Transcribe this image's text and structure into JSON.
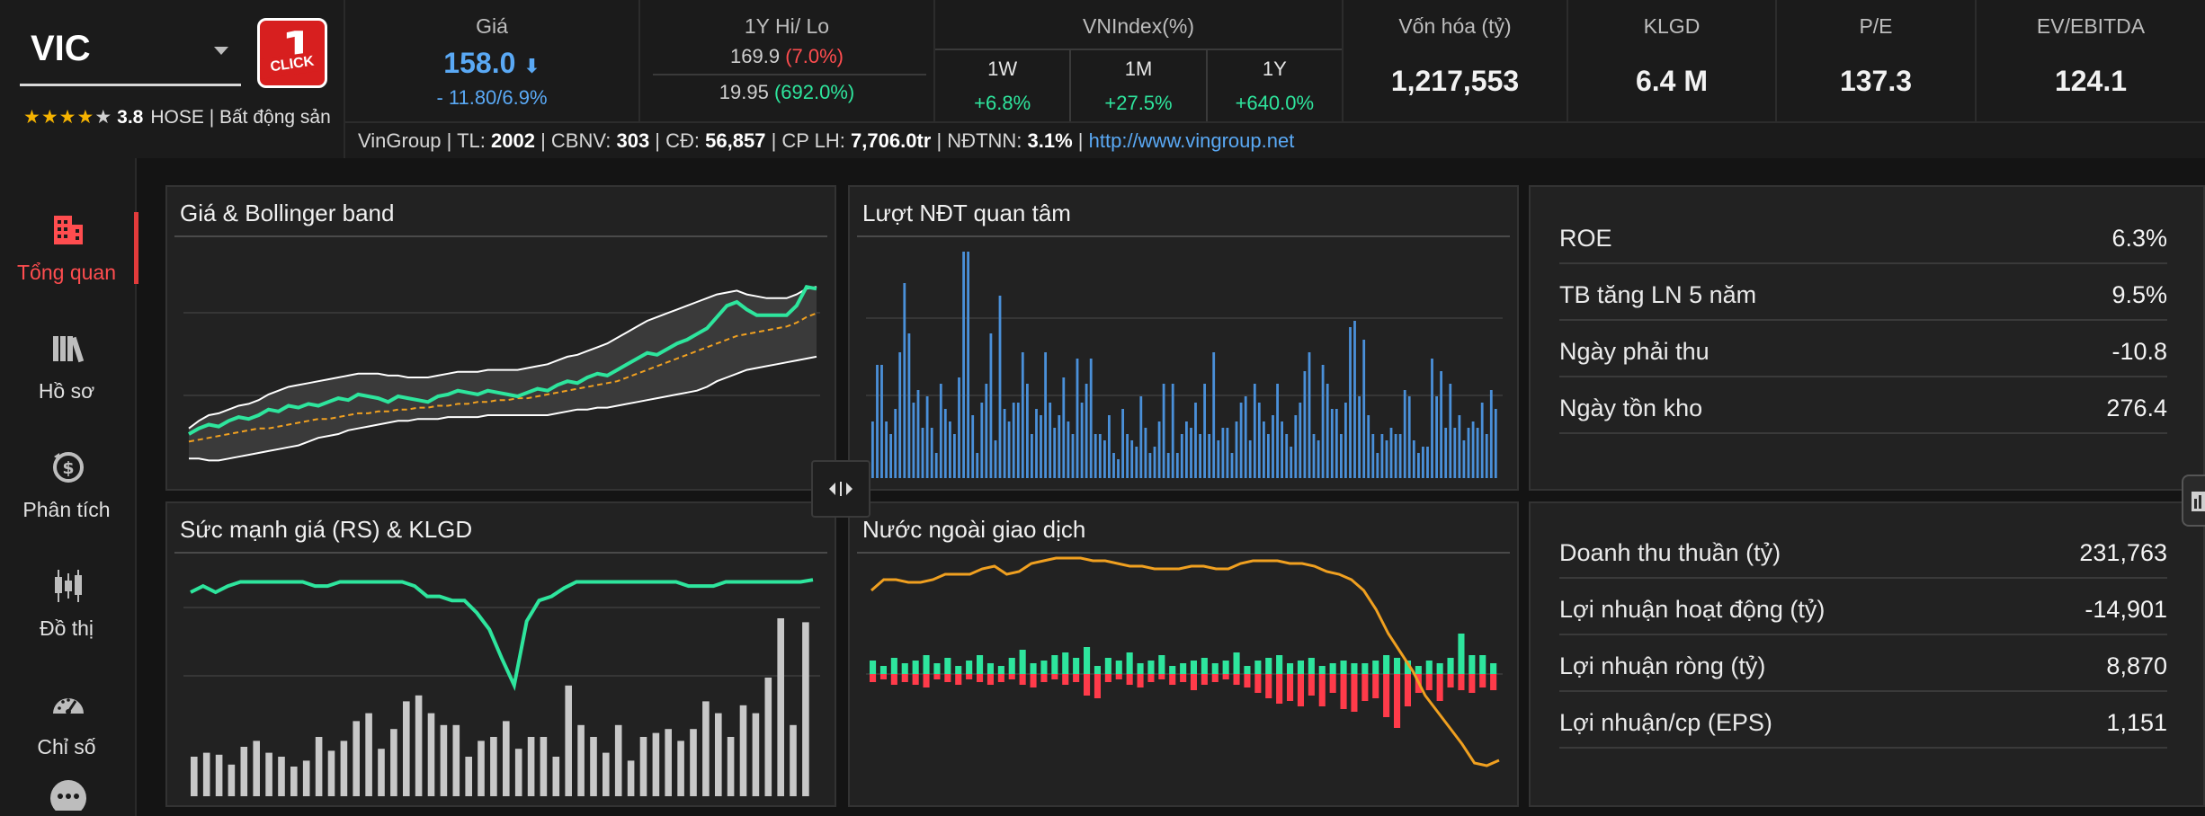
{
  "ticker": {
    "symbol": "VIC",
    "logo_text": "CLICK",
    "logo_number": "1",
    "stars": "★★★★",
    "star_empty": "★",
    "rating": "3.8",
    "exchange_sector": "HOSE | Bất động sản"
  },
  "header": {
    "price": {
      "label": "Giá",
      "value": "158.0",
      "change": "- 11.80/6.9%"
    },
    "hilo": {
      "label": "1Y Hi/ Lo",
      "hi": "169.9",
      "hi_pct": "(7.0%)",
      "lo": "19.95",
      "lo_pct": "(692.0%)"
    },
    "vnindex": {
      "label": "VNIndex(%)",
      "periods": [
        {
          "label": "1W",
          "value": "+6.8%"
        },
        {
          "label": "1M",
          "value": "+27.5%"
        },
        {
          "label": "1Y",
          "value": "+640.0%"
        }
      ]
    },
    "market_cap": {
      "label": "Vốn hóa (tỷ)",
      "value": "1,217,553"
    },
    "volume": {
      "label": "KLGD",
      "value": "6.4 M"
    },
    "pe": {
      "label": "P/E",
      "value": "137.3"
    },
    "ev_ebitda": {
      "label": "EV/EBITDA",
      "value": "124.1"
    }
  },
  "info": {
    "company": "VinGroup",
    "tl_label": "TL:",
    "tl": "2002",
    "cbnv_label": "CBNV:",
    "cbnv": "303",
    "cd_label": "CĐ:",
    "cd": "56,857",
    "cplh_label": "CP LH:",
    "cplh": "7,706.0tr",
    "ndtnn_label": "NĐTNN:",
    "ndtnn": "3.1%",
    "website": "http://www.vingroup.net"
  },
  "sidebar": {
    "items": [
      {
        "label": "Tổng quan",
        "icon": "building-icon"
      },
      {
        "label": "Hồ sơ",
        "icon": "books-icon"
      },
      {
        "label": "Phân tích",
        "icon": "money-analysis-icon"
      },
      {
        "label": "Đồ thị",
        "icon": "candlestick-icon"
      },
      {
        "label": "Chỉ số",
        "icon": "gauge-icon"
      },
      {
        "label": "",
        "icon": "more-icon"
      }
    ]
  },
  "panels": {
    "bollinger": {
      "title": "Giá & Bollinger band"
    },
    "interest": {
      "title": "Lượt NĐT quan tâm"
    },
    "rs": {
      "title": "Sức mạnh giá (RS)  & KLGD"
    },
    "foreign": {
      "title": "Nước ngoài giao dịch"
    }
  },
  "ratios": [
    {
      "label": "ROE",
      "value": "6.3%"
    },
    {
      "label": "TB tăng LN 5 năm",
      "value": "9.5%"
    },
    {
      "label": "Ngày phải thu",
      "value": "-10.8"
    },
    {
      "label": "Ngày tồn kho",
      "value": "276.4"
    }
  ],
  "financials": [
    {
      "label": "Doanh thu thuần (tỷ)",
      "value": "231,763"
    },
    {
      "label": "Lợi nhuận hoạt động (tỷ)",
      "value": "-14,901"
    },
    {
      "label": "Lợi nhuận ròng (tỷ)",
      "value": "8,870"
    },
    {
      "label": "Lợi nhuận/cp (EPS)",
      "value": "1,151"
    }
  ],
  "colors": {
    "price_line": "#2ee59d",
    "ma_line": "#f0a020",
    "band": "#ffffff",
    "interest_bar": "#4a90d9",
    "rs_line": "#2ee59d",
    "volume_bar": "#c8c8c8",
    "buy_bar": "#2ee59d",
    "sell_bar": "#ff3b4a",
    "foreign_line": "#f0a020"
  },
  "chart_data": [
    {
      "type": "line",
      "name": "bollinger",
      "price": [
        10,
        13,
        15,
        14,
        17,
        19,
        18,
        20,
        23,
        22,
        25,
        24,
        26,
        25,
        27,
        29,
        28,
        31,
        30,
        29,
        27,
        30,
        29,
        28,
        27,
        30,
        31,
        33,
        32,
        31,
        33,
        32,
        31,
        30,
        32,
        34,
        33,
        36,
        38,
        37,
        40,
        42,
        41,
        44,
        47,
        50,
        53,
        52,
        55,
        58,
        60,
        63,
        66,
        72,
        78,
        80,
        76,
        73,
        73,
        73,
        73,
        78,
        88,
        87
      ],
      "middle": [
        6,
        7,
        8,
        9,
        10,
        11,
        12,
        13,
        13,
        14,
        15,
        16,
        17,
        18,
        18,
        19,
        20,
        21,
        21,
        22,
        22,
        23,
        23,
        24,
        24,
        25,
        25,
        26,
        26,
        27,
        27,
        28,
        28,
        29,
        29,
        30,
        31,
        32,
        33,
        34,
        35,
        36,
        37,
        38,
        40,
        42,
        44,
        46,
        48,
        50,
        52,
        54,
        56,
        58,
        60,
        62,
        63,
        64,
        65,
        66,
        67,
        69,
        72,
        74
      ],
      "upper": [
        13,
        17,
        20,
        21,
        23,
        25,
        26,
        28,
        31,
        33,
        35,
        36,
        37,
        38,
        39,
        40,
        41,
        42,
        42,
        42,
        41,
        41,
        40,
        40,
        40,
        41,
        42,
        43,
        43,
        43,
        44,
        44,
        44,
        44,
        45,
        46,
        47,
        49,
        51,
        52,
        54,
        56,
        58,
        61,
        64,
        67,
        70,
        72,
        74,
        76,
        78,
        80,
        82,
        84,
        85,
        86,
        84,
        83,
        82,
        82,
        82,
        84,
        87,
        88
      ],
      "lower": [
        -3,
        -3,
        -4,
        -4,
        -3,
        -2,
        -1,
        0,
        1,
        2,
        3,
        4,
        6,
        8,
        9,
        10,
        12,
        13,
        14,
        15,
        16,
        17,
        17,
        18,
        18,
        18,
        19,
        19,
        19,
        19,
        20,
        20,
        20,
        20,
        20,
        20,
        20,
        21,
        22,
        23,
        23,
        24,
        24,
        25,
        26,
        27,
        28,
        29,
        30,
        31,
        32,
        33,
        35,
        38,
        40,
        42,
        44,
        45,
        46,
        47,
        48,
        49,
        50,
        51
      ]
    },
    {
      "type": "bar",
      "name": "interest",
      "values": [
        18,
        36,
        36,
        18,
        14,
        22,
        40,
        62,
        46,
        24,
        28,
        16,
        26,
        16,
        8,
        30,
        22,
        18,
        14,
        32,
        72,
        72,
        20,
        8,
        24,
        30,
        46,
        12,
        58,
        22,
        18,
        24,
        24,
        40,
        30,
        14,
        22,
        20,
        40,
        24,
        16,
        20,
        32,
        18,
        14,
        38,
        24,
        30,
        38,
        14,
        14,
        12,
        20,
        8,
        6,
        22,
        14,
        12,
        10,
        26,
        16,
        8,
        10,
        18,
        30,
        8,
        30,
        8,
        14,
        18,
        16,
        24,
        14,
        30,
        14,
        40,
        12,
        16,
        16,
        8,
        18,
        24,
        26,
        12,
        30,
        24,
        18,
        14,
        20,
        30,
        18,
        14,
        10,
        20,
        24,
        34,
        40,
        14,
        12,
        36,
        30,
        22,
        22,
        14,
        24,
        48,
        50,
        26,
        44,
        20,
        14,
        8,
        14,
        12,
        16,
        14,
        14,
        28,
        26,
        12,
        8,
        10,
        10,
        38,
        26,
        34,
        16,
        30,
        16,
        20,
        12,
        16,
        18,
        16,
        24,
        14,
        28,
        22
      ]
    },
    {
      "type": "line+bar",
      "name": "rs_volume",
      "rs": [
        90,
        93,
        90,
        93,
        95,
        95,
        95,
        95,
        95,
        95,
        93,
        93,
        95,
        95,
        95,
        95,
        95,
        95,
        93,
        88,
        88,
        86,
        86,
        80,
        72,
        58,
        45,
        76,
        86,
        88,
        92,
        95,
        95,
        95,
        95,
        95,
        95,
        95,
        95,
        95,
        93,
        93,
        93,
        95,
        95,
        95,
        95,
        95,
        95,
        95,
        96
      ],
      "volume": [
        20,
        22,
        21,
        16,
        25,
        28,
        22,
        20,
        15,
        18,
        30,
        23,
        28,
        38,
        42,
        24,
        34,
        48,
        51,
        42,
        36,
        36,
        20,
        28,
        30,
        38,
        24,
        30,
        30,
        20,
        56,
        36,
        30,
        22,
        36,
        18,
        30,
        32,
        34,
        28,
        34,
        48,
        42,
        30,
        46,
        42,
        60,
        90,
        36,
        88
      ]
    },
    {
      "type": "line+bar",
      "name": "foreign",
      "net_value": [
        58,
        66,
        66,
        64,
        64,
        66,
        70,
        70,
        70,
        74,
        76,
        70,
        72,
        78,
        80,
        82,
        82,
        82,
        80,
        80,
        78,
        76,
        76,
        74,
        74,
        74,
        76,
        76,
        74,
        74,
        78,
        80,
        80,
        80,
        78,
        78,
        76,
        72,
        70,
        66,
        58,
        44,
        26,
        12,
        -2,
        -20,
        -32,
        -44,
        -56,
        -70,
        -72,
        -68
      ],
      "buy": [
        10,
        6,
        12,
        8,
        10,
        14,
        8,
        12,
        6,
        10,
        14,
        8,
        6,
        12,
        18,
        8,
        10,
        14,
        16,
        12,
        20,
        6,
        12,
        10,
        16,
        8,
        10,
        14,
        6,
        8,
        10,
        12,
        8,
        10,
        16,
        6,
        10,
        12,
        14,
        8,
        10,
        12,
        6,
        8,
        10,
        8,
        8,
        10,
        14,
        12,
        10,
        6,
        10,
        8,
        12,
        30,
        14,
        14,
        8
      ],
      "sell": [
        -6,
        -4,
        -8,
        -6,
        -8,
        -10,
        -4,
        -6,
        -8,
        -4,
        -6,
        -8,
        -6,
        -4,
        -8,
        -10,
        -6,
        -4,
        -8,
        -6,
        -16,
        -18,
        -6,
        -4,
        -8,
        -10,
        -6,
        -4,
        -8,
        -6,
        -12,
        -8,
        -6,
        -4,
        -8,
        -10,
        -14,
        -18,
        -22,
        -20,
        -24,
        -16,
        -24,
        -14,
        -26,
        -28,
        -20,
        -18,
        -32,
        -40,
        -24,
        -14,
        -12,
        -20,
        -10,
        -12,
        -14,
        -10,
        -12
      ]
    }
  ]
}
